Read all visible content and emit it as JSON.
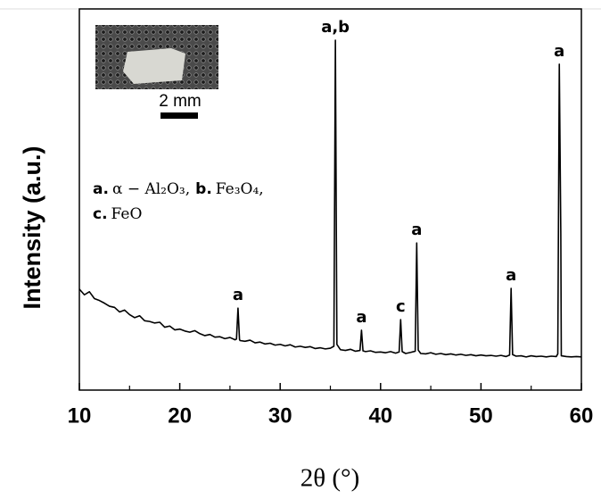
{
  "chart_data": {
    "type": "line",
    "ylabel": "Intensity (a.u.)",
    "xlabel": "2θ (°)",
    "x": [
      10,
      10.5,
      11,
      11.5,
      12,
      12.5,
      13,
      13.5,
      14,
      14.5,
      15,
      15.5,
      16,
      16.5,
      17,
      17.5,
      18,
      18.5,
      19,
      19.5,
      20,
      20.5,
      21,
      21.5,
      22,
      22.5,
      23,
      23.5,
      24,
      24.5,
      25,
      25.5,
      25.65,
      25.8,
      25.95,
      26,
      26.5,
      27,
      27.5,
      28,
      28.5,
      29,
      29.5,
      30,
      30.5,
      31,
      31.5,
      32,
      32.5,
      33,
      33.5,
      34,
      34.5,
      35,
      35.35,
      35.5,
      35.65,
      36,
      36.5,
      37,
      37.5,
      37.95,
      38.1,
      38.25,
      38.5,
      39,
      39.5,
      40,
      40.5,
      41,
      41.5,
      41.85,
      42,
      42.15,
      42.5,
      43,
      43.45,
      43.6,
      43.75,
      44,
      44.5,
      45,
      45.5,
      46,
      46.5,
      47,
      47.5,
      48,
      48.5,
      49,
      49.5,
      50,
      50.5,
      51,
      51.5,
      52,
      52.5,
      52.85,
      53,
      53.15,
      53.5,
      54,
      54.5,
      55,
      55.5,
      56,
      56.5,
      57,
      57.5,
      57.65,
      57.8,
      57.95,
      58,
      58.5,
      59,
      59.5,
      60
    ],
    "series": [
      {
        "color": "#000000",
        "values": [
          26.5,
          25,
          25.8,
          24,
          23.5,
          22.8,
          22,
          21.7,
          20.5,
          21,
          19.8,
          19,
          19.5,
          18.2,
          18,
          17.6,
          17.8,
          16.5,
          16.8,
          15.8,
          16,
          15.5,
          15.2,
          15.6,
          14.8,
          14.3,
          14.6,
          13.9,
          14,
          13.5,
          13.8,
          13.2,
          13.4,
          21.5,
          13.3,
          13,
          12.8,
          13.1,
          12.4,
          12.6,
          12.1,
          12.3,
          11.8,
          12,
          11.6,
          11.9,
          11.3,
          11.5,
          11.2,
          11.4,
          10.9,
          11.1,
          10.8,
          11,
          11.5,
          91.8,
          12,
          10.6,
          10.4,
          10.7,
          10.2,
          10.4,
          15.7,
          10.3,
          10.1,
          10.3,
          9.9,
          10,
          9.8,
          10.1,
          9.7,
          10,
          18.5,
          10.1,
          9.6,
          9.9,
          10.2,
          38.6,
          10.5,
          9.6,
          9.5,
          9.8,
          9.4,
          9.6,
          9.3,
          9.5,
          9.2,
          9.4,
          9.1,
          9.3,
          9,
          9.2,
          9,
          9.1,
          8.9,
          9.1,
          8.8,
          9.2,
          26.7,
          9.3,
          8.9,
          9,
          8.7,
          9,
          8.8,
          8.9,
          8.7,
          8.9,
          8.8,
          9.5,
          85.5,
          41,
          9,
          8.8,
          8.7,
          8.8,
          8.7
        ]
      }
    ],
    "xlim": [
      10,
      60
    ],
    "ylim": [
      0,
      100
    ],
    "xticks": [
      10,
      20,
      30,
      40,
      50,
      60
    ],
    "xminorticks": [
      15,
      25,
      35,
      45,
      55
    ],
    "peaks": [
      {
        "label": "a",
        "x": 25.8,
        "y": 21.5
      },
      {
        "label": "a,b",
        "x": 35.5,
        "y": 91.8
      },
      {
        "label": "a",
        "x": 38.1,
        "y": 15.7
      },
      {
        "label": "c",
        "x": 42,
        "y": 18.5
      },
      {
        "label": "a",
        "x": 43.6,
        "y": 38.6
      },
      {
        "label": "a",
        "x": 53,
        "y": 26.7
      },
      {
        "label": "a",
        "x": 57.8,
        "y": 85.5
      }
    ],
    "phase_key": [
      {
        "letter": "a.",
        "formula": "α − Al₂O₃,"
      },
      {
        "letter": "b.",
        "formula": "Fe₃O₄,"
      },
      {
        "letter": "c.",
        "formula": "FeO"
      }
    ],
    "inset_scale_label": "2 mm"
  }
}
